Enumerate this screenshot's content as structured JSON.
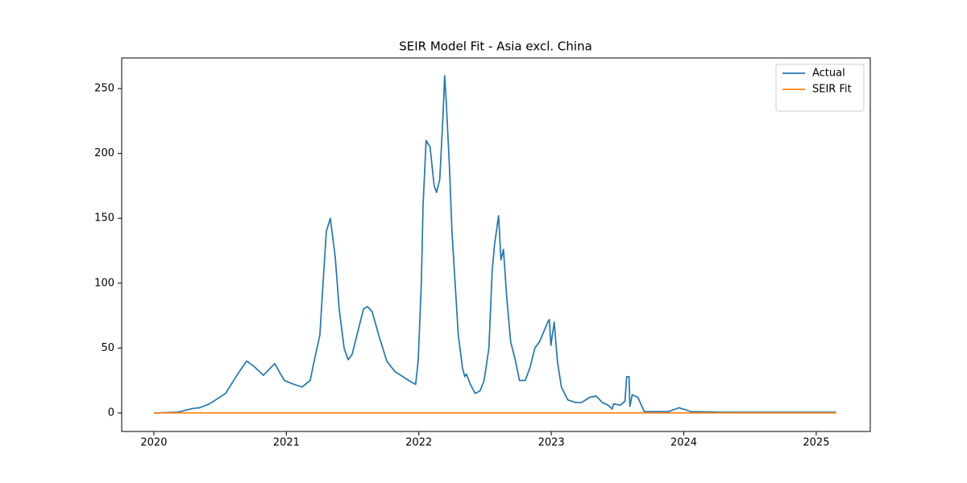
{
  "chart_data": {
    "type": "line",
    "title": "SEIR Model Fit - Asia excl. China",
    "xlim": [
      2019.757,
      2025.408
    ],
    "xticks": [
      2020,
      2021,
      2022,
      2023,
      2024,
      2025
    ],
    "ylim": [
      -14.3,
      273.6
    ],
    "yticks": [
      0,
      50,
      100,
      150,
      200,
      250
    ],
    "legend": "upper right",
    "series": [
      {
        "name": "Actual",
        "color": "#1f77b4",
        "x": [
          2020.0,
          2020.176,
          2020.237,
          2020.298,
          2020.347,
          2020.42,
          2020.481,
          2020.541,
          2020.602,
          2020.633,
          2020.7,
          2020.754,
          2020.827,
          2020.912,
          2020.985,
          2021.058,
          2021.119,
          2021.18,
          2021.21,
          2021.253,
          2021.277,
          2021.302,
          2021.332,
          2021.369,
          2021.399,
          2021.436,
          2021.466,
          2021.496,
          2021.533,
          2021.582,
          2021.612,
          2021.648,
          2021.697,
          2021.758,
          2021.818,
          2021.879,
          2021.939,
          2021.976,
          2021.995,
          2022.019,
          2022.032,
          2022.055,
          2022.085,
          2022.116,
          2022.134,
          2022.158,
          2022.183,
          2022.195,
          2022.207,
          2022.231,
          2022.25,
          2022.274,
          2022.298,
          2022.329,
          2022.347,
          2022.359,
          2022.389,
          2022.426,
          2022.462,
          2022.493,
          2022.529,
          2022.554,
          2022.572,
          2022.602,
          2022.62,
          2022.639,
          2022.663,
          2022.693,
          2022.73,
          2022.76,
          2022.803,
          2022.839,
          2022.876,
          2022.912,
          2022.973,
          2022.985,
          2022.997,
          2023.022,
          2023.046,
          2023.076,
          2023.125,
          2023.186,
          2023.228,
          2023.289,
          2023.338,
          2023.386,
          2023.429,
          2023.459,
          2023.471,
          2023.52,
          2023.556,
          2023.569,
          2023.587,
          2023.593,
          2023.611,
          2023.654,
          2023.684,
          2023.702,
          2023.885,
          2023.964,
          2024.055,
          2024.311,
          2025.15
        ],
        "values": [
          0,
          0.5,
          2,
          3.5,
          4,
          7,
          11,
          15,
          25,
          30,
          40,
          36,
          29,
          38,
          25,
          22,
          20,
          25,
          40,
          60,
          100,
          140,
          150,
          120,
          80,
          50,
          41,
          45,
          60,
          80,
          82,
          78,
          60,
          40,
          32,
          28,
          24,
          22,
          40,
          100,
          160,
          210,
          205,
          175,
          170,
          180,
          230,
          260,
          240,
          190,
          140,
          100,
          60,
          35,
          28,
          30,
          22,
          15,
          17,
          25,
          50,
          110,
          130,
          152,
          118,
          126,
          90,
          55,
          40,
          25,
          25,
          35,
          50,
          55,
          70,
          72,
          52,
          70,
          40,
          20,
          10,
          8,
          8,
          12,
          13,
          8,
          6,
          3,
          7,
          6,
          9,
          28,
          28,
          5,
          14,
          12,
          5,
          1,
          1,
          4,
          1,
          0.5,
          0.5
        ]
      },
      {
        "name": "SEIR Fit",
        "color": "#ff7f0e",
        "x": [
          2020.0,
          2025.15
        ],
        "values": [
          0,
          0
        ]
      }
    ]
  }
}
